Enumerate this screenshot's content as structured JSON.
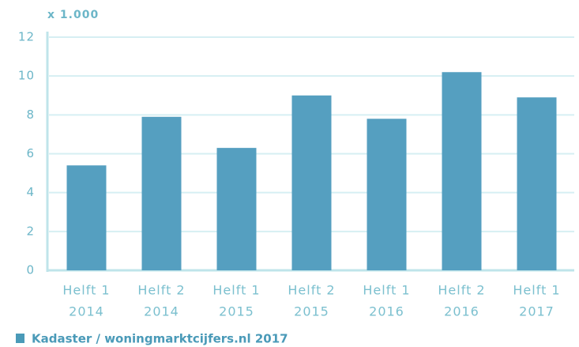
{
  "chart_data": {
    "type": "bar",
    "y_label": "x 1.000",
    "source": "Kadaster / woningmarktcijfers.nl 2017",
    "categories": [
      [
        "Helft 1",
        "2014"
      ],
      [
        "Helft 2",
        "2014"
      ],
      [
        "Helft 1",
        "2015"
      ],
      [
        "Helft 2",
        "2015"
      ],
      [
        "Helft 1",
        "2016"
      ],
      [
        "Helft 2",
        "2016"
      ],
      [
        "Helft 1",
        "2017"
      ]
    ],
    "values": [
      5.4,
      7.9,
      6.3,
      9.0,
      7.8,
      10.2,
      8.9
    ],
    "color": "#559fc0",
    "ylim": [
      0,
      12
    ],
    "yticks": [
      0,
      2,
      4,
      6,
      8,
      10,
      12
    ],
    "grid": true
  }
}
